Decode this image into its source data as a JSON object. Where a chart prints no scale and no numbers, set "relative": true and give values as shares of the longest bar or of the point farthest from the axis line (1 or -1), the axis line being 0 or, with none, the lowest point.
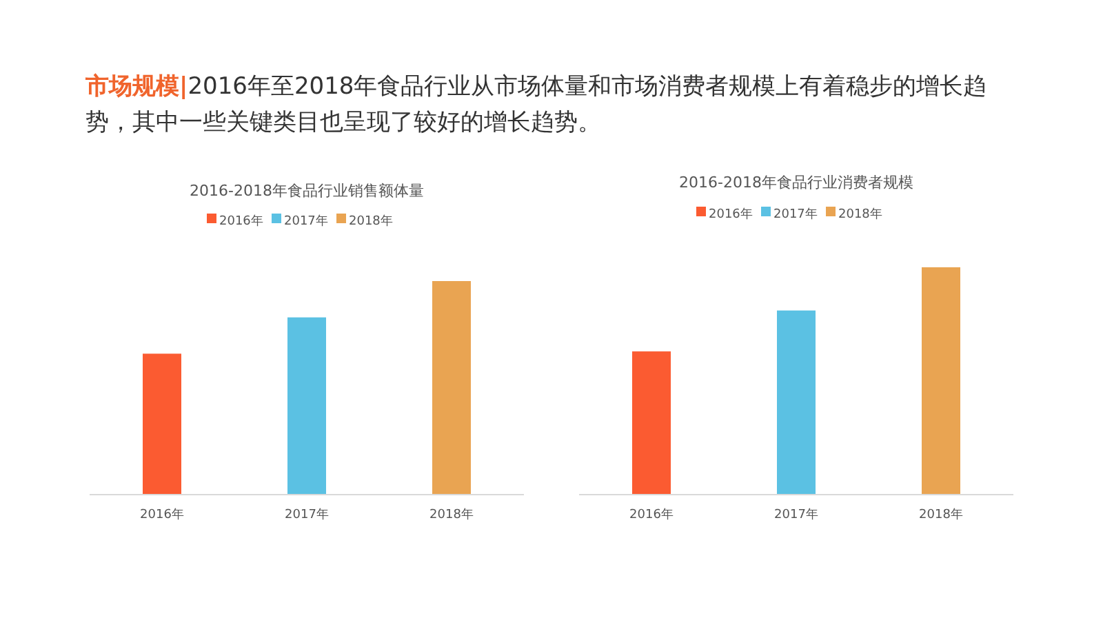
{
  "chart_data": [
    {
      "type": "other",
      "title": "市场规模|",
      "subtitle": "2016年至2018年食品行业从市场体量和市场消费者规模上有着稳步的增长趋势，其中一些关键类目也呈现了较好的增长趋势。"
    },
    {
      "type": "bar",
      "title": "2016-2018年食品行业销售额体量",
      "categories": [
        "2016年",
        "2017年",
        "2018年"
      ],
      "relative": true,
      "legend": "top",
      "series": [
        {
          "name": "2016年",
          "color": "#fb5b31",
          "values": [
            0.66,
            null,
            null
          ]
        },
        {
          "name": "2017年",
          "color": "#5bc1e3",
          "values": [
            null,
            0.83,
            null
          ]
        },
        {
          "name": "2018年",
          "color": "#e9a452",
          "values": [
            null,
            null,
            1
          ]
        }
      ]
    },
    {
      "type": "bar",
      "title": "2016-2018年食品行业消费者规模",
      "categories": [
        "2016年",
        "2017年",
        "2018年"
      ],
      "relative": true,
      "legend": "top",
      "series": [
        {
          "name": "2016年",
          "color": "#fb5b31",
          "values": [
            0.63,
            null,
            null
          ]
        },
        {
          "name": "2017年",
          "color": "#5bc1e3",
          "values": [
            null,
            0.81,
            null
          ]
        },
        {
          "name": "2018年",
          "color": "#e9a452",
          "values": [
            null,
            null,
            1
          ]
        }
      ]
    }
  ]
}
